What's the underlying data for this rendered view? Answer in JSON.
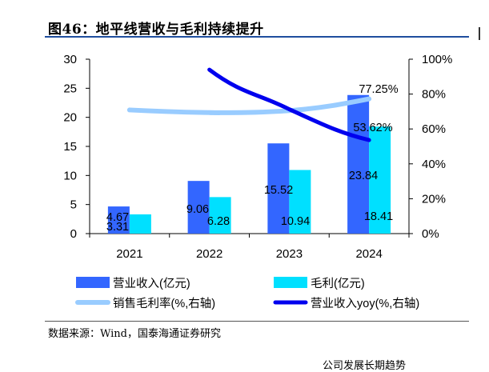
{
  "figure": {
    "title": "图46：地平线营收与毛利持续提升",
    "source": "数据来源：Wind，国泰海通证券研究",
    "footer_fragment": "公司发展长期趋势"
  },
  "chart_data": {
    "type": "bar",
    "categories": [
      "2021",
      "2022",
      "2023",
      "2024"
    ],
    "series": [
      {
        "name": "营业收入(亿元)",
        "kind": "bar",
        "axis": "left",
        "color": "#3366ff",
        "values": [
          4.67,
          9.06,
          15.52,
          23.84
        ],
        "labels": [
          "4.67",
          "9.06",
          "15.52",
          "23.84"
        ]
      },
      {
        "name": "毛利(亿元)",
        "kind": "bar",
        "axis": "left",
        "color": "#00e0ff",
        "values": [
          3.31,
          6.28,
          10.94,
          18.41
        ],
        "labels": [
          "3.31",
          "6.28",
          "10.94",
          "18.41"
        ]
      },
      {
        "name": "销售毛利率(%,右轴)",
        "kind": "line",
        "axis": "right",
        "color": "#99ccff",
        "values": [
          70.9,
          69.3,
          70.5,
          77.25
        ],
        "labels": [
          "",
          "",
          "",
          "77.25%"
        ]
      },
      {
        "name": "营业收入yoy(%,右轴)",
        "kind": "line",
        "axis": "right",
        "color": "#0000ee",
        "values": [
          null,
          94.0,
          71.3,
          53.62
        ],
        "labels": [
          "",
          "",
          "",
          "53.62%"
        ]
      }
    ],
    "left_axis": {
      "ylim": [
        0,
        30
      ],
      "ticks": [
        "0",
        "5",
        "10",
        "15",
        "20",
        "25",
        "30"
      ]
    },
    "right_axis": {
      "ylim": [
        0,
        100
      ],
      "ticks": [
        "0%",
        "20%",
        "40%",
        "60%",
        "80%",
        "100%"
      ]
    },
    "legend_position": "bottom",
    "grid": false
  }
}
